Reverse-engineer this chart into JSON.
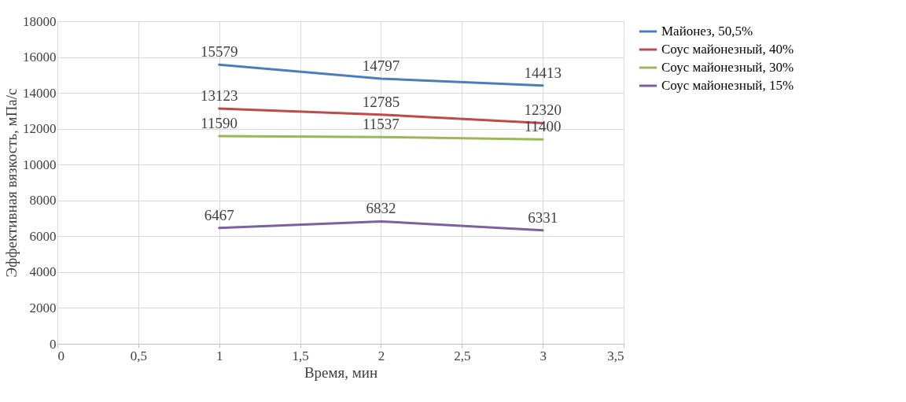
{
  "chart_data": {
    "type": "line",
    "xlabel": "Время, мин",
    "ylabel": "Эффективная вязкость, мПа/с",
    "x": [
      1,
      2,
      3
    ],
    "series": [
      {
        "name": "Майонез, 50,5%",
        "color": "#4a7ebb",
        "values": [
          15579,
          14797,
          14413
        ]
      },
      {
        "name": "Соус майонезный, 40%",
        "color": "#be4b48",
        "values": [
          13123,
          12785,
          12320
        ]
      },
      {
        "name": "Соус майонезный, 30%",
        "color": "#98b954",
        "values": [
          11590,
          11537,
          11400
        ]
      },
      {
        "name": "Соус майонезный, 15%",
        "color": "#7d60a0",
        "values": [
          6467,
          6832,
          6331
        ]
      }
    ],
    "xlim": [
      0,
      3.5
    ],
    "xticks": [
      0,
      {
        "value": 0.5,
        "label": "0,5"
      },
      1,
      {
        "value": 1.5,
        "label": "1,5"
      },
      2,
      {
        "value": 2.5,
        "label": "2,5"
      },
      3,
      {
        "value": 3.5,
        "label": "3,5"
      }
    ],
    "ylim": [
      0,
      18000
    ],
    "yticks": [
      0,
      2000,
      4000,
      6000,
      8000,
      10000,
      12000,
      14000,
      16000,
      18000
    ],
    "grid": true,
    "legend": "right",
    "data_labels": true
  }
}
